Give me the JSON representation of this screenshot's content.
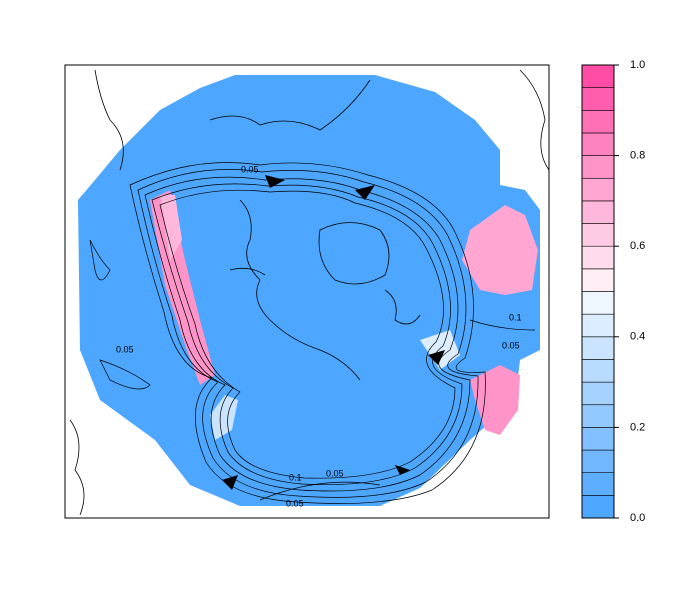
{
  "map": {
    "contour_labels": [
      "0.05",
      "0.05",
      "0.1",
      "0.05",
      "0.1",
      "0.05",
      "0.05"
    ],
    "colorbar": {
      "levels": [
        0,
        0.05,
        0.1,
        0.15,
        0.2,
        0.25,
        0.3,
        0.35,
        0.4,
        0.45,
        0.5,
        0.55,
        0.6,
        0.65,
        0.7,
        0.75,
        0.8,
        0.85,
        0.9,
        0.95,
        1
      ],
      "colors": [
        "#4da6ff",
        "#5eaeff",
        "#70b7ff",
        "#82c0ff",
        "#94c9ff",
        "#a6d2ff",
        "#b8dbff",
        "#cae4ff",
        "#dcedff",
        "#eef6ff",
        "#ffeef6",
        "#ffdced",
        "#ffcae4",
        "#ffb8db",
        "#ffa6d2",
        "#ff94c9",
        "#ff82c0",
        "#ff70b7",
        "#ff5eae",
        "#ff4da6"
      ],
      "lim": [
        0,
        1
      ],
      "ticks": [
        {
          "value": 0,
          "label": "0.0"
        },
        {
          "value": 0.2,
          "label": "0.2"
        },
        {
          "value": 0.4,
          "label": "0.4"
        },
        {
          "value": 0.6,
          "label": "0.6"
        },
        {
          "value": 0.8,
          "label": "0.8"
        },
        {
          "value": 1,
          "label": "1.0"
        }
      ]
    }
  }
}
